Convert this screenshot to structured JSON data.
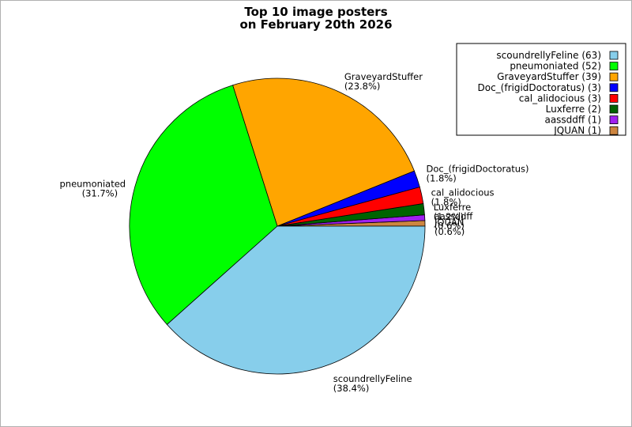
{
  "chart_data": {
    "type": "pie",
    "title": [
      "Top 10 image posters",
      "on February 20th 2026"
    ],
    "legend_position": "top-right",
    "slices": [
      {
        "name": "scoundrellyFeline",
        "count": 63,
        "percent": "38.4%",
        "legend": "scoundrellyFeline (63)",
        "color": "#87ceeb"
      },
      {
        "name": "pneumoniated",
        "count": 52,
        "percent": "31.7%",
        "legend": "pneumoniated (52)",
        "color": "#00ff00"
      },
      {
        "name": "GraveyardStuffer",
        "count": 39,
        "percent": "23.8%",
        "legend": "GraveyardStuffer (39)",
        "color": "#ffa500"
      },
      {
        "name": "Doc_(frigidDoctoratus)",
        "count": 3,
        "percent": "1.8%",
        "legend": "Doc_(frigidDoctoratus) (3)",
        "color": "#0000ff"
      },
      {
        "name": "cal_alidocious",
        "count": 3,
        "percent": "1.8%",
        "legend": "cal_alidocious (3)",
        "color": "#ff0000"
      },
      {
        "name": "Luxferre",
        "count": 2,
        "percent": "1.2%",
        "legend": "Luxferre (2)",
        "color": "#006400"
      },
      {
        "name": "aassddff",
        "count": 1,
        "percent": "0.6%",
        "legend": "aassddff (1)",
        "color": "#a020f0"
      },
      {
        "name": "JQUAN",
        "count": 1,
        "percent": "0.6%",
        "legend": "JQUAN (1)",
        "color": "#cd853f"
      }
    ]
  }
}
